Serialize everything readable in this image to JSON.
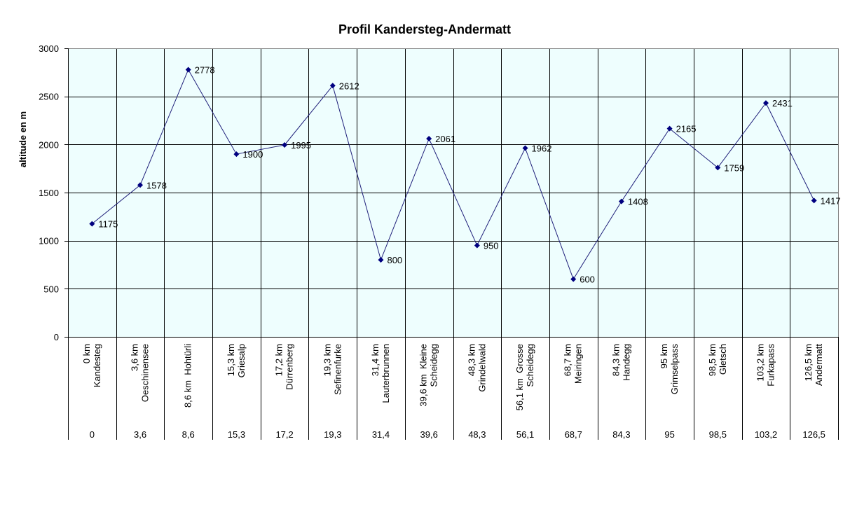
{
  "chart_data": {
    "type": "line",
    "title": "Profil Kandersteg-Andermatt",
    "xlabel": "",
    "ylabel": "altitude en m",
    "ylim": [
      0,
      3000
    ],
    "yticks": [
      "0",
      "500",
      "1000",
      "1500",
      "2000",
      "2500",
      "3000"
    ],
    "grid": true,
    "legend": "none",
    "colors": {
      "line": "#1f1f7a",
      "marker": "#000080",
      "plot_bg": "#eefefe",
      "grid": "#000000"
    },
    "categories": [
      {
        "name": [
          "0 km",
          "Kandesteg"
        ],
        "km": "0"
      },
      {
        "name": [
          "3,6 km",
          "Oeschinensee"
        ],
        "km": "3,6"
      },
      {
        "name": [
          "8,6 km  Hohtürli"
        ],
        "km": "8,6"
      },
      {
        "name": [
          "15,3 km",
          "Griesalp"
        ],
        "km": "15,3"
      },
      {
        "name": [
          "17,2 km",
          "Dürrenberg"
        ],
        "km": "17,2"
      },
      {
        "name": [
          "19,3 km",
          "Sefinenfurke"
        ],
        "km": "19,3"
      },
      {
        "name": [
          "31,4 km",
          "Lauterbrunnen"
        ],
        "km": "31,4"
      },
      {
        "name": [
          "39,6 km  Kleine",
          "Scheidegg"
        ],
        "km": "39,6"
      },
      {
        "name": [
          "48,3 km",
          "Grindelwald"
        ],
        "km": "48,3"
      },
      {
        "name": [
          "56,1 km  Grosse",
          "Scheidegg"
        ],
        "km": "56,1"
      },
      {
        "name": [
          "68,7 km",
          "Meiringen"
        ],
        "km": "68,7"
      },
      {
        "name": [
          "84,3 km",
          "Handegg"
        ],
        "km": "84,3"
      },
      {
        "name": [
          "95 km",
          "Grimselpass"
        ],
        "km": "95"
      },
      {
        "name": [
          "98,5 km",
          "Gletsch"
        ],
        "km": "98,5"
      },
      {
        "name": [
          "103,2 km",
          "Furkapass"
        ],
        "km": "103,2"
      },
      {
        "name": [
          "126,5 km",
          "Andermatt"
        ],
        "km": "126,5"
      }
    ],
    "series": [
      {
        "values": [
          1175,
          1578,
          2778,
          1900,
          1995,
          2612,
          800,
          2061,
          950,
          1962,
          600,
          1408,
          2165,
          1759,
          2431,
          1417
        ]
      }
    ]
  }
}
